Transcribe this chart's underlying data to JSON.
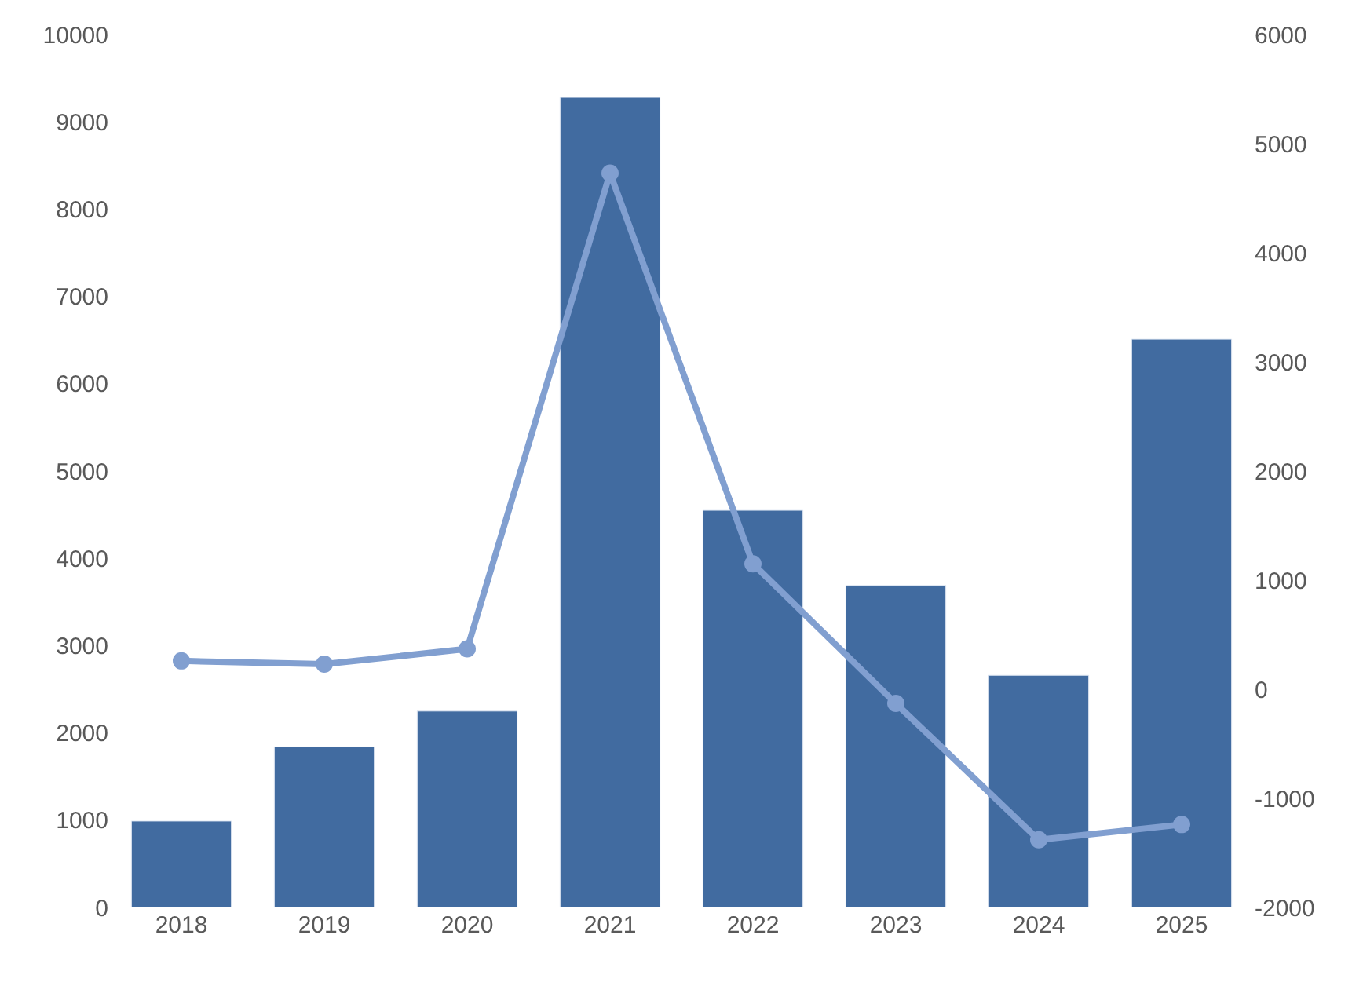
{
  "chart_data": {
    "type": "bar",
    "categories": [
      "2018",
      "2019",
      "2020",
      "2021",
      "2022",
      "2023",
      "2024",
      "2025"
    ],
    "series": [
      {
        "color": "#416ba0",
        "values": [
          990,
          1840,
          2250,
          9280,
          4550,
          3690,
          2660,
          6510
        ]
      },
      {
        "type": "line",
        "axis": "y2",
        "color": "#819fd0",
        "marker": "circle",
        "values": [
          260,
          230,
          370,
          4730,
          1150,
          -130,
          -1380,
          -1240
        ]
      }
    ],
    "ylim": [
      0,
      10000
    ],
    "yticks": [
      0,
      1000,
      2000,
      3000,
      4000,
      5000,
      6000,
      7000,
      8000,
      9000,
      10000
    ],
    "y2lim": [
      -2000,
      6000
    ],
    "y2ticks": [
      -2000,
      -1000,
      0,
      1000,
      2000,
      3000,
      4000,
      5000,
      6000
    ],
    "legend": false
  }
}
